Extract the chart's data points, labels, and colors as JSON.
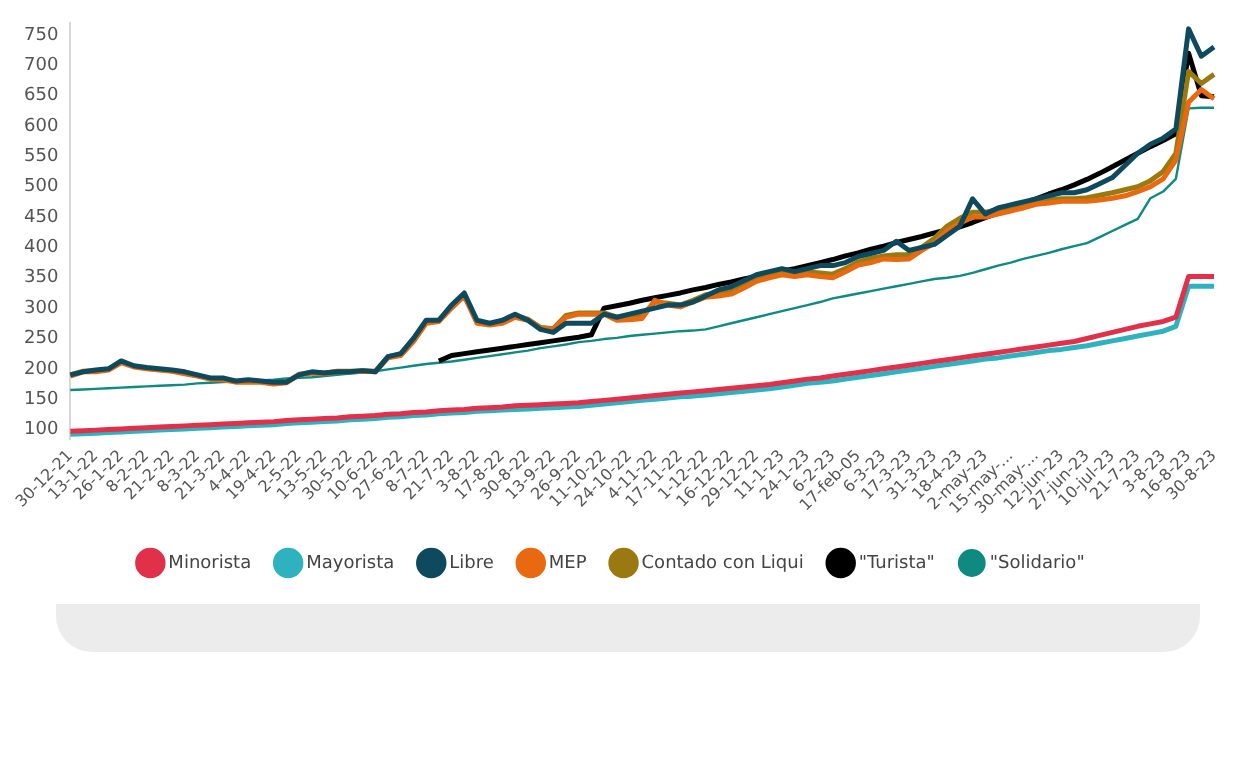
{
  "chart_data": {
    "type": "line",
    "categories": [
      "30-12-21",
      null,
      "13-1-22",
      null,
      "26-1-22",
      null,
      "8-2-22",
      null,
      "21-2-22",
      null,
      "8-3-22",
      null,
      "21-3-22",
      null,
      "4-4-22",
      null,
      "19-4-22",
      null,
      "2-5-22",
      null,
      "13-5-22",
      null,
      "30-5-22",
      null,
      "10-6-22",
      null,
      "27-6-22",
      null,
      "8-7-22",
      null,
      "21-7-22",
      null,
      "3-8-22",
      null,
      "17-8-22",
      null,
      "30-8-22",
      null,
      "13-9-22",
      null,
      "26-9-22",
      null,
      "11-10-22",
      null,
      "24-10-22",
      null,
      "4-11-22",
      null,
      "17-11-22",
      null,
      "1-12-22",
      null,
      "16-12-22",
      null,
      "29-12-22",
      null,
      "11-1-23",
      null,
      "24-1-23",
      null,
      "6-2-23",
      null,
      "17-feb-05",
      null,
      "6-3-23",
      null,
      "17-3-23",
      null,
      "31-3-23",
      null,
      "18-4-23",
      null,
      "2-may-23",
      null,
      "15-may-...",
      null,
      "30-may-...",
      null,
      "12-jun-23",
      null,
      "27-jun-23",
      null,
      "10-jul-23",
      null,
      "21-7-23",
      null,
      "3-8-23",
      null,
      "16-8-23",
      null,
      "30-8-23"
    ],
    "series": [
      {
        "name": "Minorista",
        "color": "#e0304a",
        "values": [
          97,
          98,
          99,
          100,
          101,
          102,
          103,
          104,
          105,
          106,
          107,
          108,
          109,
          110,
          111,
          112,
          113,
          115,
          116,
          117,
          118,
          119,
          121,
          122,
          123,
          125,
          126,
          128,
          129,
          131,
          132,
          133,
          135,
          136,
          137,
          139,
          140,
          141,
          142,
          143,
          144,
          146,
          148,
          150,
          152,
          154,
          156,
          158,
          160,
          162,
          164,
          166,
          168,
          170,
          172,
          174,
          177,
          180,
          183,
          185,
          188,
          191,
          194,
          197,
          200,
          203,
          206,
          209,
          212,
          215,
          218,
          221,
          224,
          227,
          230,
          233,
          236,
          239,
          242,
          245,
          250,
          255,
          260,
          265,
          270,
          274,
          278,
          285,
          352,
          352,
          352
        ]
      },
      {
        "name": "Mayorista",
        "color": "#2eb2c0",
        "values": [
          92,
          93,
          94,
          95,
          96,
          97,
          98,
          99,
          100,
          101,
          102,
          103,
          104,
          105,
          106,
          107,
          108,
          110,
          111,
          112,
          113,
          114,
          116,
          117,
          118,
          120,
          121,
          123,
          124,
          126,
          127,
          128,
          130,
          131,
          132,
          133,
          134,
          135,
          136,
          137,
          138,
          140,
          142,
          144,
          146,
          148,
          150,
          152,
          154,
          155,
          157,
          159,
          161,
          163,
          165,
          167,
          170,
          173,
          176,
          178,
          180,
          183,
          186,
          189,
          192,
          195,
          198,
          201,
          204,
          207,
          210,
          213,
          216,
          218,
          221,
          224,
          227,
          230,
          232,
          235,
          238,
          242,
          246,
          250,
          254,
          258,
          262,
          270,
          336,
          336,
          336
        ]
      },
      {
        "name": "Libre",
        "color": "#0e4a5e",
        "values": [
          190,
          195,
          198,
          200,
          213,
          205,
          202,
          200,
          198,
          195,
          190,
          185,
          185,
          180,
          182,
          180,
          178,
          178,
          190,
          195,
          193,
          195,
          195,
          197,
          195,
          220,
          225,
          250,
          280,
          280,
          305,
          325,
          280,
          275,
          280,
          290,
          280,
          265,
          260,
          275,
          275,
          275,
          290,
          285,
          290,
          295,
          300,
          305,
          305,
          310,
          320,
          330,
          335,
          345,
          355,
          360,
          365,
          360,
          365,
          370,
          370,
          375,
          385,
          390,
          395,
          410,
          395,
          400,
          405,
          420,
          435,
          480,
          455,
          465,
          470,
          475,
          480,
          485,
          490,
          490,
          495,
          505,
          515,
          535,
          555,
          570,
          580,
          595,
          760,
          715,
          730
        ]
      },
      {
        "name": "MEP",
        "color": "#e8690f",
        "values": [
          188,
          195,
          195,
          198,
          210,
          203,
          200,
          198,
          196,
          192,
          188,
          183,
          182,
          178,
          178,
          178,
          175,
          177,
          190,
          193,
          192,
          195,
          195,
          196,
          195,
          218,
          222,
          245,
          275,
          278,
          300,
          320,
          275,
          272,
          275,
          285,
          280,
          268,
          265,
          285,
          290,
          290,
          290,
          280,
          281,
          283,
          313,
          305,
          302,
          310,
          318,
          320,
          323,
          333,
          344,
          350,
          355,
          352,
          355,
          352,
          350,
          360,
          371,
          375,
          381,
          380,
          381,
          395,
          407,
          428,
          440,
          450,
          450,
          455,
          460,
          465,
          471,
          473,
          476,
          476,
          476,
          478,
          481,
          485,
          492,
          500,
          513,
          544,
          639,
          660,
          645
        ]
      },
      {
        "name": "Contado con Liqui",
        "color": "#9a7a10",
        "values": [
          190,
          196,
          197,
          199,
          212,
          204,
          201,
          199,
          197,
          194,
          189,
          184,
          184,
          179,
          180,
          179,
          176,
          178,
          191,
          194,
          193,
          196,
          196,
          197,
          196,
          220,
          224,
          248,
          278,
          280,
          303,
          322,
          278,
          274,
          278,
          288,
          282,
          268,
          266,
          288,
          292,
          292,
          292,
          285,
          285,
          288,
          310,
          308,
          305,
          313,
          322,
          325,
          328,
          338,
          350,
          355,
          360,
          356,
          360,
          358,
          356,
          365,
          376,
          382,
          386,
          388,
          388,
          400,
          415,
          435,
          448,
          458,
          458,
          462,
          466,
          470,
          476,
          478,
          480,
          480,
          482,
          486,
          490,
          495,
          500,
          510,
          525,
          555,
          690,
          670,
          685
        ]
      },
      {
        "name": "\"Turista\"",
        "color": "#000000",
        "values": [
          null,
          null,
          null,
          null,
          null,
          null,
          null,
          null,
          null,
          null,
          null,
          null,
          null,
          null,
          null,
          null,
          null,
          null,
          null,
          null,
          null,
          null,
          null,
          null,
          null,
          null,
          null,
          null,
          null,
          213,
          222,
          225,
          228,
          231,
          234,
          237,
          240,
          243,
          246,
          249,
          252,
          256,
          300,
          304,
          308,
          313,
          317,
          321,
          325,
          330,
          334,
          339,
          343,
          348,
          352,
          357,
          361,
          365,
          370,
          375,
          380,
          386,
          391,
          397,
          402,
          408,
          413,
          418,
          424,
          429,
          434,
          441,
          449,
          457,
          465,
          473,
          480,
          488,
          495,
          503,
          512,
          522,
          533,
          544,
          555,
          566,
          576,
          587,
          720,
          650,
          648
        ]
      },
      {
        "name": "\"Solidario\"",
        "color": "#0e8a80",
        "values": [
          165,
          166,
          167,
          168,
          169,
          170,
          171,
          172,
          173,
          174,
          176,
          177,
          178,
          179,
          180,
          181,
          182,
          184,
          185,
          186,
          188,
          190,
          192,
          194,
          196,
          199,
          202,
          205,
          208,
          210,
          212,
          215,
          218,
          221,
          224,
          227,
          230,
          234,
          237,
          240,
          244,
          246,
          249,
          251,
          254,
          256,
          258,
          260,
          262,
          263,
          265,
          270,
          275,
          280,
          285,
          290,
          295,
          300,
          305,
          310,
          316,
          320,
          324,
          328,
          332,
          336,
          340,
          344,
          348,
          350,
          353,
          358,
          364,
          370,
          375,
          381,
          386,
          391,
          397,
          402,
          407,
          417,
          427,
          437,
          447,
          481,
          492,
          513,
          629,
          630,
          630
        ]
      }
    ],
    "ylim": [
      85,
      770
    ],
    "yticks": [
      100,
      150,
      200,
      250,
      300,
      350,
      400,
      450,
      500,
      550,
      600,
      650,
      700,
      750
    ],
    "grid": false,
    "legend": "bottom",
    "marker": "none",
    "line_style": "solid"
  }
}
